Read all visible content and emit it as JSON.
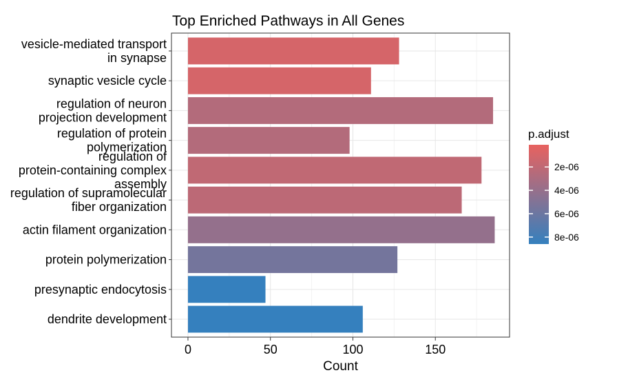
{
  "chart_data": {
    "type": "bar",
    "orientation": "horizontal",
    "title": "Top Enriched Pathways in All Genes",
    "xlabel": "Count",
    "ylabel": "",
    "xlim": [
      -10,
      195
    ],
    "x_ticks": [
      0,
      50,
      100,
      150
    ],
    "x_tick_labels": [
      "0",
      "50",
      "100",
      "150"
    ],
    "grid": true,
    "categories": [
      [
        "vesicle-mediated transport",
        "in synapse"
      ],
      [
        "synaptic vesicle cycle"
      ],
      [
        "regulation of neuron",
        "projection development"
      ],
      [
        "regulation of protein",
        "polymerization"
      ],
      [
        "regulation of",
        "protein-containing complex",
        "assembly"
      ],
      [
        "regulation of supramolecular",
        "fiber organization"
      ],
      [
        "actin filament organization"
      ],
      [
        "protein polymerization"
      ],
      [
        "presynaptic endocytosis"
      ],
      [
        "dendrite development"
      ]
    ],
    "values": [
      128,
      111,
      185,
      98,
      178,
      166,
      186,
      127,
      47,
      106
    ],
    "color_values": [
      1e-06,
      1e-06,
      2.6e-06,
      2.6e-06,
      2e-06,
      2.2e-06,
      4.1e-06,
      5.6e-06,
      8.6e-06,
      8.6e-06
    ],
    "legend": {
      "title": "p.adjust",
      "position": "right",
      "ticks": [
        2e-06,
        4e-06,
        6e-06,
        8e-06
      ],
      "tick_labels": [
        "2e-06",
        "4e-06",
        "6e-06",
        "8e-06"
      ],
      "range": [
        1e-07,
        8.6e-06
      ],
      "low_color": "#E8625F",
      "high_color": "#3580BE"
    }
  }
}
